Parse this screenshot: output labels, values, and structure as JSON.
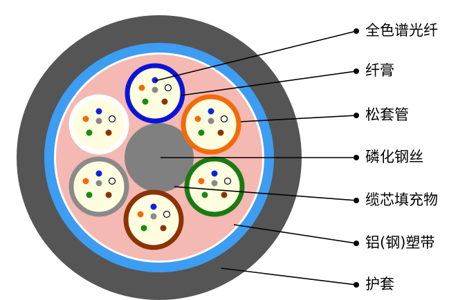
{
  "labels": [
    {
      "text": "全色谱光纤"
    },
    {
      "text": "纤膏"
    },
    {
      "text": "松套管"
    },
    {
      "text": "磷化钢丝"
    },
    {
      "text": "缆芯填充物"
    },
    {
      "text": "铝(钢)塑带"
    },
    {
      "text": "护套"
    }
  ]
}
